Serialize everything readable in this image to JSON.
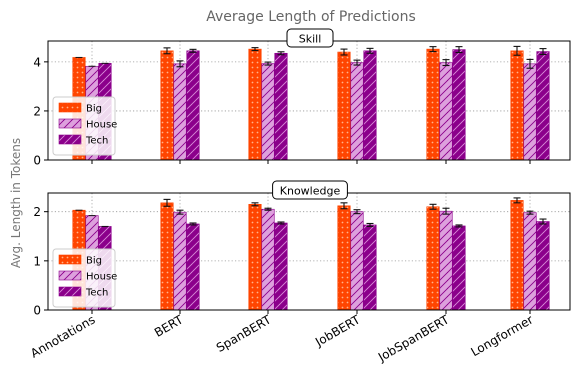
{
  "figure": {
    "title": "Average Length of Predictions",
    "ylabel": "Avg. Length in Tokens",
    "colors": {
      "Big": "#ff4500",
      "House": "#dda0dd",
      "Tech": "#8b008b",
      "title_text": "#666666",
      "ylabel_text": "#777777"
    },
    "icons": {
      "Big": "dot-hatch",
      "House": "diagonal-hatch",
      "Tech": "diagonal-hatch"
    }
  },
  "chart_data": [
    {
      "type": "bar",
      "panel_label": "Skill",
      "categories": [
        "Annotations",
        "BERT",
        "SpanBERT",
        "JobBERT",
        "JobSpanBERT",
        "Longformer"
      ],
      "ylim": [
        0,
        4.85
      ],
      "yticks": [
        "0",
        "2",
        "4"
      ],
      "grid": "dotted",
      "legend_placement": "lower-left",
      "series": [
        {
          "name": "Big",
          "values": [
            4.18,
            4.45,
            4.52,
            4.4,
            4.52,
            4.45
          ],
          "errors": [
            0.0,
            0.12,
            0.06,
            0.12,
            0.1,
            0.18
          ]
        },
        {
          "name": "House",
          "values": [
            3.82,
            3.92,
            3.93,
            3.97,
            3.97,
            3.92
          ],
          "errors": [
            0.0,
            0.12,
            0.06,
            0.1,
            0.12,
            0.18
          ]
        },
        {
          "name": "Tech",
          "values": [
            3.94,
            4.45,
            4.35,
            4.45,
            4.5,
            4.42
          ],
          "errors": [
            0.0,
            0.06,
            0.06,
            0.1,
            0.12,
            0.12
          ]
        }
      ]
    },
    {
      "type": "bar",
      "panel_label": "Knowledge",
      "categories": [
        "Annotations",
        "BERT",
        "SpanBERT",
        "JobBERT",
        "JobSpanBERT",
        "Longformer"
      ],
      "ylim": [
        0,
        2.38
      ],
      "yticks": [
        "0",
        "1",
        "2"
      ],
      "grid": "dotted",
      "legend_placement": "lower-left",
      "series": [
        {
          "name": "Big",
          "values": [
            2.03,
            2.18,
            2.15,
            2.12,
            2.1,
            2.23
          ],
          "errors": [
            0.0,
            0.07,
            0.03,
            0.06,
            0.05,
            0.05
          ]
        },
        {
          "name": "House",
          "values": [
            1.92,
            1.99,
            2.05,
            2.0,
            2.01,
            1.98
          ],
          "errors": [
            0.0,
            0.04,
            0.02,
            0.04,
            0.06,
            0.03
          ]
        },
        {
          "name": "Tech",
          "values": [
            1.7,
            1.75,
            1.77,
            1.73,
            1.71,
            1.8
          ],
          "errors": [
            0.0,
            0.02,
            0.02,
            0.03,
            0.02,
            0.05
          ]
        }
      ]
    }
  ],
  "xtick_labels": [
    "Annotations",
    "BERT",
    "SpanBERT",
    "JobBERT",
    "JobSpanBERT",
    "Longformer"
  ],
  "legend": [
    "Big",
    "House",
    "Tech"
  ]
}
